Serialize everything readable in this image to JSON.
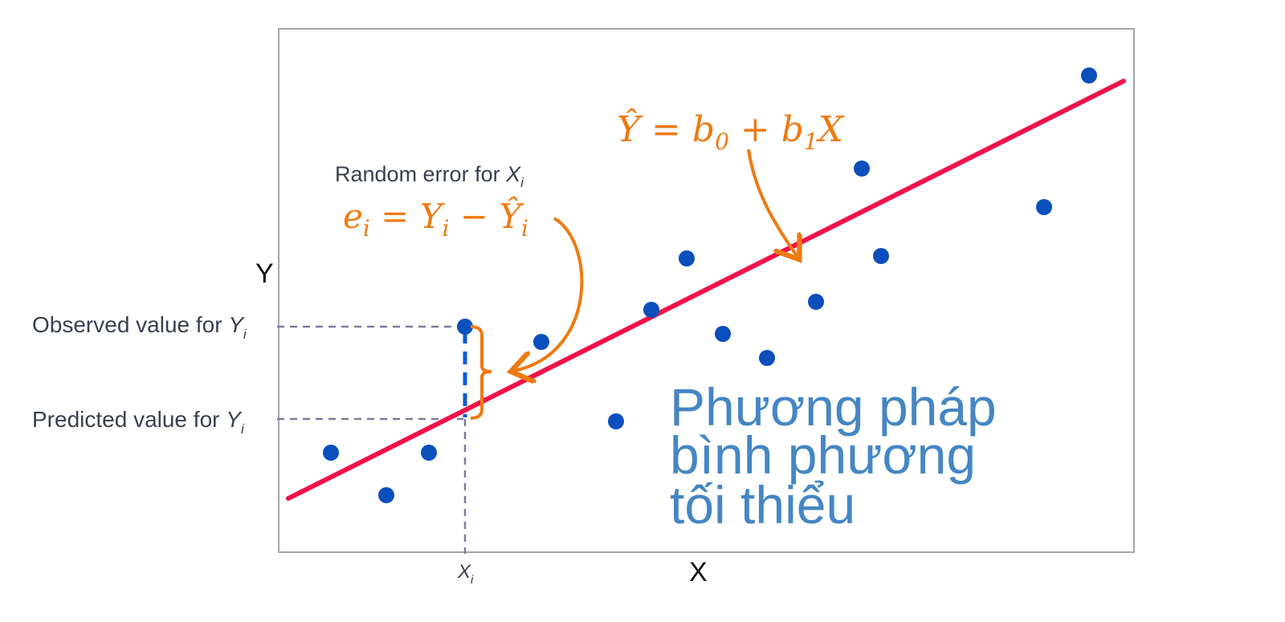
{
  "colors": {
    "frame": "#a6a6a6",
    "point": "#0b4fbd",
    "line": "#f0134a",
    "annotation": "#ef7a12",
    "guide": "#7a7f9a",
    "label": "#3a3f54",
    "title": "#4586c4",
    "xi_guide": "#0b5bd6"
  },
  "axes": {
    "x_label": "X",
    "y_label": "Y"
  },
  "labels": {
    "random_error_prefix": "Random error for ",
    "random_error_var": "X",
    "random_error_sub": "i",
    "observed_prefix": "Observed value for ",
    "observed_var": "Y",
    "observed_sub": "i",
    "predicted_prefix": "Predicted value for ",
    "predicted_var": "Y",
    "predicted_sub": "i",
    "xi_var": "X",
    "xi_sub": "i"
  },
  "equations": {
    "regression": {
      "yhat": "Ŷ",
      "eq": " = b",
      "sub0": "0",
      "plus": " + b",
      "sub1": "1",
      "x": "X"
    },
    "error": {
      "e": "e",
      "sub_e": "i",
      "eq": " = Y",
      "sub_y": "i",
      "minus": " − Ŷ",
      "sub_yhat": "i"
    }
  },
  "title": {
    "line1": "Phương pháp",
    "line2": "bình phương",
    "line3": "tối thiểu"
  },
  "chart_data": {
    "type": "scatter",
    "x": [
      65,
      134,
      187,
      232,
      327,
      420,
      464,
      508,
      553,
      608,
      669,
      726,
      750,
      953,
      1009
    ],
    "y": [
      124,
      71,
      124,
      281,
      262,
      163,
      302,
      366,
      272,
      242,
      312,
      478,
      369,
      430,
      594
    ],
    "xi_point": {
      "x": 232,
      "y": 281
    },
    "fit_line": {
      "b0": 61,
      "b1": 0.5
    },
    "xlim": [
      0,
      1065
    ],
    "ylim": [
      0,
      652
    ]
  }
}
